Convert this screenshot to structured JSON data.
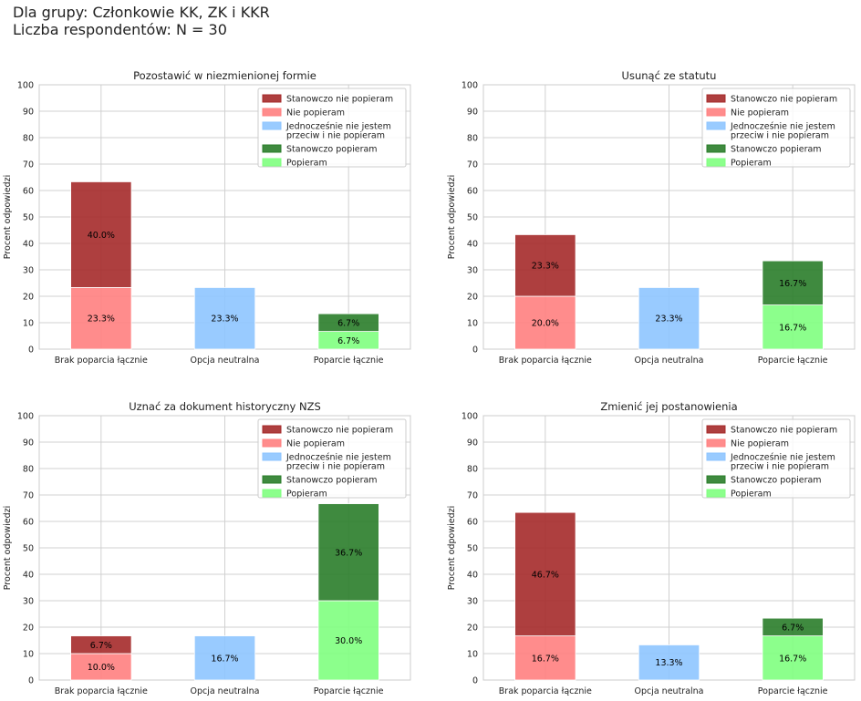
{
  "header": {
    "line1": "Dla grupy: Członkowie KK, ZK i KKR",
    "line2": "Liczba respondentów: N = 30"
  },
  "colors": {
    "stanowczo_nie": "#a52a2a",
    "nie": "#ff8080",
    "neutral": "#8ec5ff",
    "stanowczo_tak": "#2a7d2a",
    "tak": "#80ff80",
    "grid": "#d0d0d0",
    "axis_text": "#222222"
  },
  "legend": [
    {
      "label": "Stanowczo nie popieram",
      "color": "#a52a2a"
    },
    {
      "label": "Nie popieram",
      "color": "#ff8080"
    },
    {
      "label": "Jednocześnie nie jestem\nprzeciw i nie popieram",
      "color": "#8ec5ff"
    },
    {
      "label": "Stanowczo popieram",
      "color": "#2a7d2a"
    },
    {
      "label": "Popieram",
      "color": "#80ff80"
    }
  ],
  "chart_data": [
    {
      "type": "bar",
      "stacked": true,
      "title": "Pozostawić w niezmienionej formie",
      "ylabel": "Procent odpowiedzi",
      "ylim": [
        0,
        100
      ],
      "yticks": [
        0,
        10,
        20,
        30,
        40,
        50,
        60,
        70,
        80,
        90,
        100
      ],
      "categories": [
        "Brak poparcia łącznie",
        "Opcja neutralna",
        "Poparcie łącznie"
      ],
      "grid": true,
      "legend_position": "top-right",
      "stacks": [
        [
          {
            "value": 23.3,
            "color": "#ff8080",
            "label": "23.3%"
          },
          {
            "value": 40.0,
            "color": "#a52a2a",
            "label": "40.0%"
          }
        ],
        [
          {
            "value": 23.3,
            "color": "#8ec5ff",
            "label": "23.3%"
          }
        ],
        [
          {
            "value": 6.7,
            "color": "#80ff80",
            "label": "6.7%"
          },
          {
            "value": 6.7,
            "color": "#2a7d2a",
            "label": "6.7%"
          }
        ]
      ]
    },
    {
      "type": "bar",
      "stacked": true,
      "title": "Usunąć ze statutu",
      "ylabel": "Procent odpowiedzi",
      "ylim": [
        0,
        100
      ],
      "yticks": [
        0,
        10,
        20,
        30,
        40,
        50,
        60,
        70,
        80,
        90,
        100
      ],
      "categories": [
        "Brak poparcia łącznie",
        "Opcja neutralna",
        "Poparcie łącznie"
      ],
      "grid": true,
      "legend_position": "top-right",
      "stacks": [
        [
          {
            "value": 20.0,
            "color": "#ff8080",
            "label": "20.0%"
          },
          {
            "value": 23.3,
            "color": "#a52a2a",
            "label": "23.3%"
          }
        ],
        [
          {
            "value": 23.3,
            "color": "#8ec5ff",
            "label": "23.3%"
          }
        ],
        [
          {
            "value": 16.7,
            "color": "#80ff80",
            "label": "16.7%"
          },
          {
            "value": 16.7,
            "color": "#2a7d2a",
            "label": "16.7%"
          }
        ]
      ]
    },
    {
      "type": "bar",
      "stacked": true,
      "title": "Uznać za dokument historyczny NZS",
      "ylabel": "Procent odpowiedzi",
      "ylim": [
        0,
        100
      ],
      "yticks": [
        0,
        10,
        20,
        30,
        40,
        50,
        60,
        70,
        80,
        90,
        100
      ],
      "categories": [
        "Brak poparcia łącznie",
        "Opcja neutralna",
        "Poparcie łącznie"
      ],
      "grid": true,
      "legend_position": "top-right",
      "stacks": [
        [
          {
            "value": 10.0,
            "color": "#ff8080",
            "label": "10.0%"
          },
          {
            "value": 6.7,
            "color": "#a52a2a",
            "label": "6.7%"
          }
        ],
        [
          {
            "value": 16.7,
            "color": "#8ec5ff",
            "label": "16.7%"
          }
        ],
        [
          {
            "value": 30.0,
            "color": "#80ff80",
            "label": "30.0%"
          },
          {
            "value": 36.7,
            "color": "#2a7d2a",
            "label": "36.7%"
          }
        ]
      ]
    },
    {
      "type": "bar",
      "stacked": true,
      "title": "Zmienić jej postanowienia",
      "ylabel": "Procent odpowiedzi",
      "ylim": [
        0,
        100
      ],
      "yticks": [
        0,
        10,
        20,
        30,
        40,
        50,
        60,
        70,
        80,
        90,
        100
      ],
      "categories": [
        "Brak poparcia łącznie",
        "Opcja neutralna",
        "Poparcie łącznie"
      ],
      "grid": true,
      "legend_position": "top-right",
      "stacks": [
        [
          {
            "value": 16.7,
            "color": "#ff8080",
            "label": "16.7%"
          },
          {
            "value": 46.7,
            "color": "#a52a2a",
            "label": "46.7%"
          }
        ],
        [
          {
            "value": 13.3,
            "color": "#8ec5ff",
            "label": "13.3%"
          }
        ],
        [
          {
            "value": 16.7,
            "color": "#80ff80",
            "label": "16.7%"
          },
          {
            "value": 6.7,
            "color": "#2a7d2a",
            "label": "6.7%"
          }
        ]
      ]
    }
  ]
}
